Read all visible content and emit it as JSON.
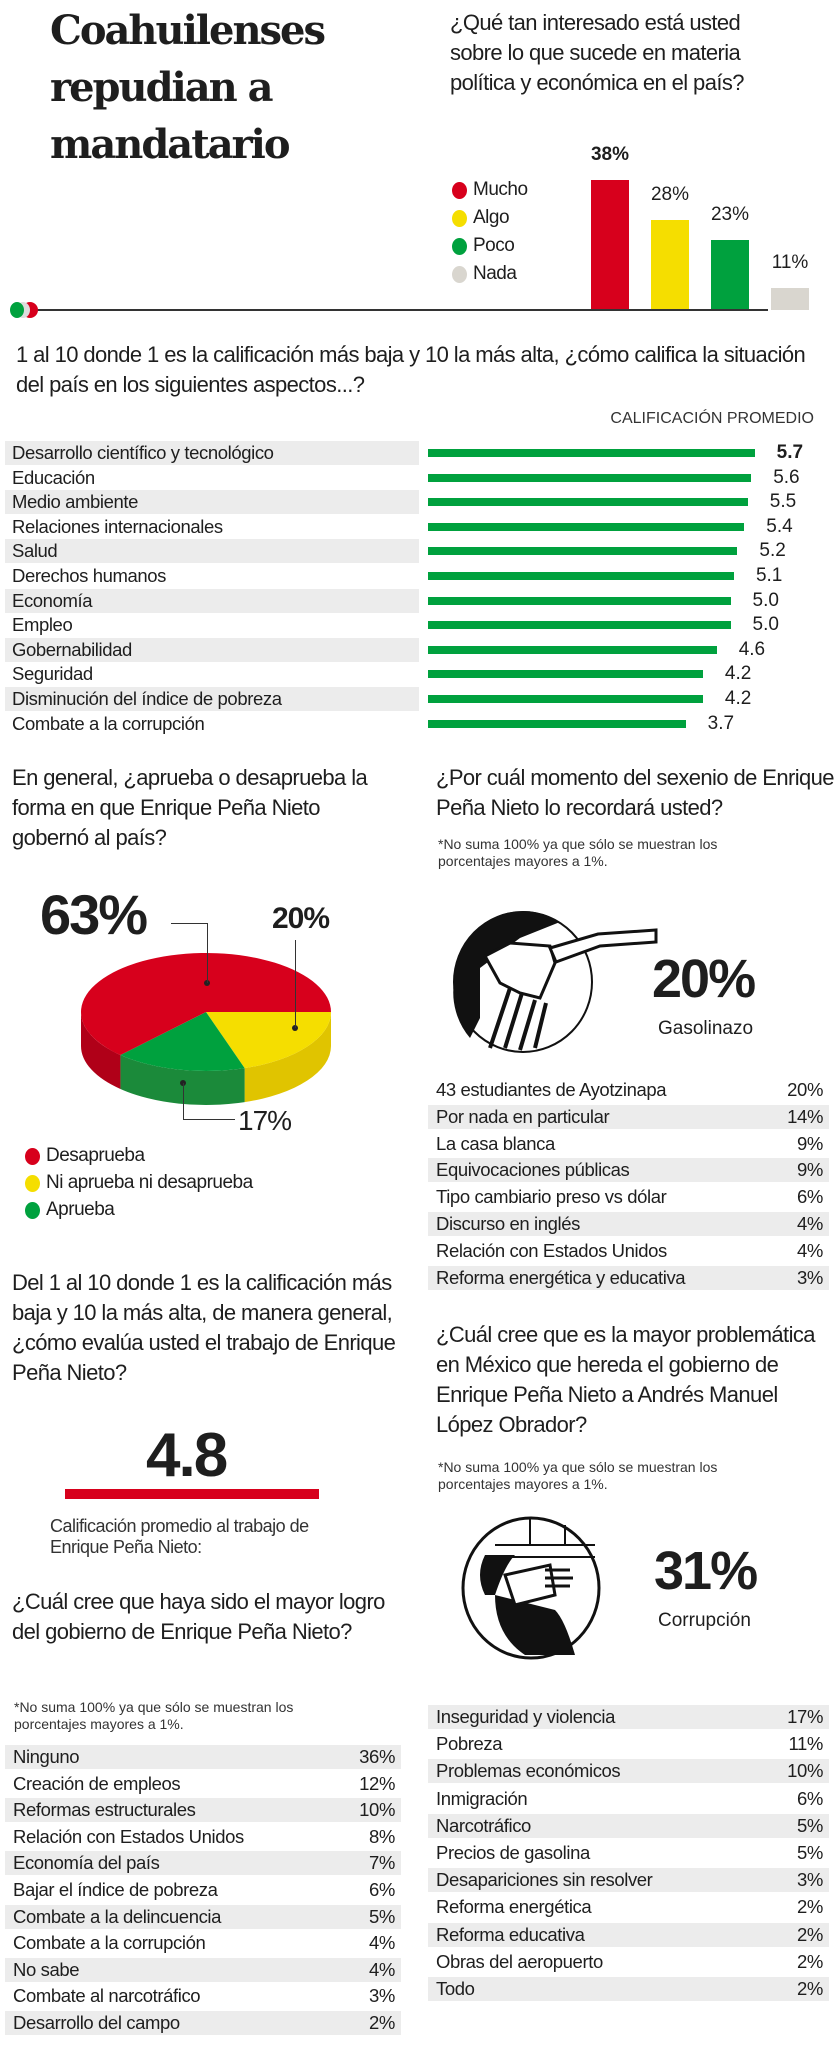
{
  "title": "Coahuilenses repudian a mandatario",
  "colors": {
    "red": "#d7001c",
    "yellow": "#f5de00",
    "green": "#00a13e",
    "gray": "#d9d6cf",
    "row_gray": "#ececec"
  },
  "interest": {
    "question": "¿Qué tan interesado está usted sobre lo que sucede en materia política y económica en el país?",
    "chart_data": {
      "type": "bar",
      "categories": [
        "Mucho",
        "Algo",
        "Poco",
        "Nada"
      ],
      "values": [
        38,
        28,
        23,
        11
      ],
      "labels": [
        "38%",
        "28%",
        "23%",
        "11%"
      ],
      "unit": "%",
      "legend_position": "left"
    }
  },
  "aspects": {
    "question": "1 al 10 donde 1 es la calificación más baja y 10 la más alta, ¿cómo califica la situación del país en los siguientes aspectos...?",
    "header": "CALIFICACIÓN PROMEDIO",
    "chart_data": {
      "type": "bar",
      "orientation": "horizontal",
      "categories": [
        "Desarrollo científico y tecnológico",
        "Educación",
        "Medio ambiente",
        "Relaciones internacionales",
        "Salud",
        "Derechos humanos",
        "Economía",
        "Empleo",
        "Gobernabilidad",
        "Seguridad",
        "Disminución del índice de pobreza",
        "Combate a la corrupción"
      ],
      "values": [
        5.7,
        5.6,
        5.5,
        5.4,
        5.2,
        5.1,
        5.0,
        5.0,
        4.6,
        4.2,
        4.2,
        3.7
      ],
      "labels": [
        "5.7",
        "5.6",
        "5.5",
        "5.4",
        "5.2",
        "5.1",
        "5.0",
        "5.0",
        "4.6",
        "4.2",
        "4.2",
        "3.7"
      ]
    }
  },
  "approval": {
    "question": "En general, ¿aprueba o desaprueba la forma en que Enrique Peña Nieto gobernó al país?",
    "chart_data": {
      "type": "pie",
      "categories": [
        "Desaprueba",
        "Ni aprueba ni desaprueba",
        "Aprueba"
      ],
      "values": [
        63,
        20,
        17
      ],
      "labels": [
        "63%",
        "20%",
        "17%"
      ],
      "legend_position": "bottom-left"
    }
  },
  "remember": {
    "question": "¿Por cuál momento del sexenio de Enrique Peña Nieto lo recordará usted?",
    "note": "*No suma 100% ya que sólo se muestran los porcentajes mayores a 1%.",
    "highlight_value": "20%",
    "highlight_label": "Gasolinazo",
    "icon": "gas-pump-nozzle-icon",
    "items": [
      [
        "43 estudiantes de Ayotzinapa",
        "20%"
      ],
      [
        "Por nada en particular",
        "14%"
      ],
      [
        "La casa blanca",
        "9%"
      ],
      [
        "Equivocaciones públicas",
        "9%"
      ],
      [
        "Tipo cambiario preso vs dólar",
        "6%"
      ],
      [
        "Discurso en inglés",
        "4%"
      ],
      [
        "Relación con Estados Unidos",
        "4%"
      ],
      [
        "Reforma energética y educativa",
        "3%"
      ]
    ]
  },
  "rating": {
    "question": "Del 1 al 10 donde 1 es la calificación más baja y 10 la más alta, de manera general, ¿cómo evalúa usted el trabajo de Enrique Peña Nieto?",
    "value": "4.8",
    "caption": "Calificación promedio al trabajo de Enrique Peña Nieto:"
  },
  "achievement": {
    "question": "¿Cuál cree que haya sido el mayor logro del gobierno de Enrique Peña Nieto?",
    "note": "*No suma 100% ya que sólo se muestran los porcentajes mayores a 1%.",
    "items": [
      [
        "Ninguno",
        "36%"
      ],
      [
        "Creación de empleos",
        "12%"
      ],
      [
        "Reformas estructurales",
        "10%"
      ],
      [
        "Relación con Estados Unidos",
        "8%"
      ],
      [
        "Economía del país",
        "7%"
      ],
      [
        "Bajar el índice de pobreza",
        "6%"
      ],
      [
        "Combate a la delincuencia",
        "5%"
      ],
      [
        "Combate a la corrupción",
        "4%"
      ],
      [
        "No sabe",
        "4%"
      ],
      [
        "Combate al narcotráfico",
        "3%"
      ],
      [
        "Desarrollo del campo",
        "2%"
      ]
    ]
  },
  "problem": {
    "question": "¿Cuál cree que es la mayor problemática en México que hereda el gobierno de Enrique Peña Nieto a Andrés Manuel López Obrador?",
    "note": "*No suma 100% ya que sólo se muestran los porcentajes mayores a 1%.",
    "highlight_value": "31%",
    "highlight_label": "Corrupción",
    "icon": "masked-person-icon",
    "items": [
      [
        "Inseguridad y violencia",
        "17%"
      ],
      [
        "Pobreza",
        "11%"
      ],
      [
        "Problemas económicos",
        "10%"
      ],
      [
        "Inmigración",
        "6%"
      ],
      [
        "Narcotráfico",
        "5%"
      ],
      [
        "Precios de gasolina",
        "5%"
      ],
      [
        "Desapariciones sin resolver",
        "3%"
      ],
      [
        "Reforma energética",
        "2%"
      ],
      [
        "Reforma educativa",
        "2%"
      ],
      [
        "Obras del aeropuerto",
        "2%"
      ],
      [
        "Todo",
        "2%"
      ]
    ]
  }
}
